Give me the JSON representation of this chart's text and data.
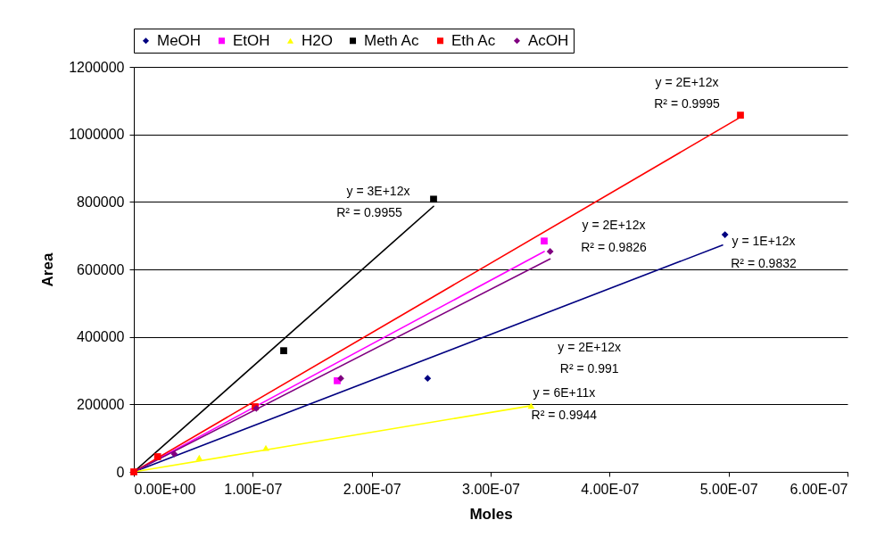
{
  "chart_data": {
    "type": "scatter",
    "xlabel": "Moles",
    "ylabel": "Area",
    "legend": "top",
    "grid": "y",
    "xlim": [
      0,
      6e-07
    ],
    "xticks": [
      {
        "value": 0,
        "label": "0.00E+00"
      },
      {
        "value": 1e-07,
        "label": "1.00E-07"
      },
      {
        "value": 2e-07,
        "label": "2.00E-07"
      },
      {
        "value": 3e-07,
        "label": "3.00E-07"
      },
      {
        "value": 4e-07,
        "label": "4.00E-07"
      },
      {
        "value": 5e-07,
        "label": "5.00E-07"
      },
      {
        "value": 6e-07,
        "label": "6.00E-07"
      }
    ],
    "ylim": [
      0,
      1200000
    ],
    "yticks": [
      0,
      200000,
      400000,
      600000,
      800000,
      1000000,
      1200000
    ],
    "series": [
      {
        "name": "MeOH",
        "color": "#000080",
        "marker": "diamond",
        "x": [
          2.47e-07,
          4.97e-07
        ],
        "values": [
          277000,
          703000
        ]
      },
      {
        "name": "EtOH",
        "color": "#ff00ff",
        "marker": "square",
        "x": [
          1.71e-07,
          3.45e-07
        ],
        "values": [
          270000,
          684000
        ]
      },
      {
        "name": "H2O",
        "color": "#ffff00",
        "marker": "triangle",
        "x": [
          5.5e-08,
          1.11e-07,
          3.34e-07
        ],
        "values": [
          42000,
          71000,
          196000
        ]
      },
      {
        "name": "Meth Ac",
        "color": "#000000",
        "marker": "square",
        "x": [
          1.26e-07,
          2.52e-07
        ],
        "values": [
          359000,
          808000
        ]
      },
      {
        "name": "Eth Ac",
        "color": "#ff0000",
        "marker": "square",
        "x": [
          0,
          2e-08,
          1.02e-07,
          5.1e-07
        ],
        "values": [
          0,
          45000,
          193000,
          1057000
        ]
      },
      {
        "name": "AcOH",
        "color": "#800080",
        "marker": "diamond",
        "x": [
          3.4e-08,
          1.03e-07,
          1.74e-07,
          3.5e-07
        ],
        "values": [
          53000,
          188000,
          277000,
          653000
        ]
      },
      {
        "type": "line",
        "color": "#000080",
        "marker": "none",
        "x": [
          0,
          4.95e-07
        ],
        "values": [
          0,
          672000
        ]
      },
      {
        "type": "line",
        "color": "#ff00ff",
        "marker": "none",
        "x": [
          0,
          3.45e-07
        ],
        "values": [
          0,
          653000
        ]
      },
      {
        "type": "line",
        "color": "#ffff00",
        "marker": "none",
        "x": [
          0,
          3.34e-07
        ],
        "values": [
          0,
          196000
        ]
      },
      {
        "type": "line",
        "color": "#000000",
        "marker": "none",
        "x": [
          0,
          2.52e-07
        ],
        "values": [
          0,
          787000
        ]
      },
      {
        "type": "line",
        "color": "#ff0000",
        "marker": "none",
        "x": [
          0,
          5.1e-07
        ],
        "values": [
          0,
          1051000
        ]
      },
      {
        "type": "line",
        "color": "#800080",
        "marker": "none",
        "x": [
          0,
          3.5e-07
        ],
        "values": [
          0,
          631000
        ]
      }
    ],
    "annotations": [
      "y = 1E+12x",
      "R² = 0.9832",
      "y = 2E+12x",
      "R² = 0.9826",
      "y = 6E+11x",
      "R² = 0.9944",
      "y = 3E+12x",
      "R² = 0.9955",
      "y = 2E+12x",
      "R² = 0.9995",
      "y = 2E+12x",
      "R² = 0.991"
    ]
  }
}
